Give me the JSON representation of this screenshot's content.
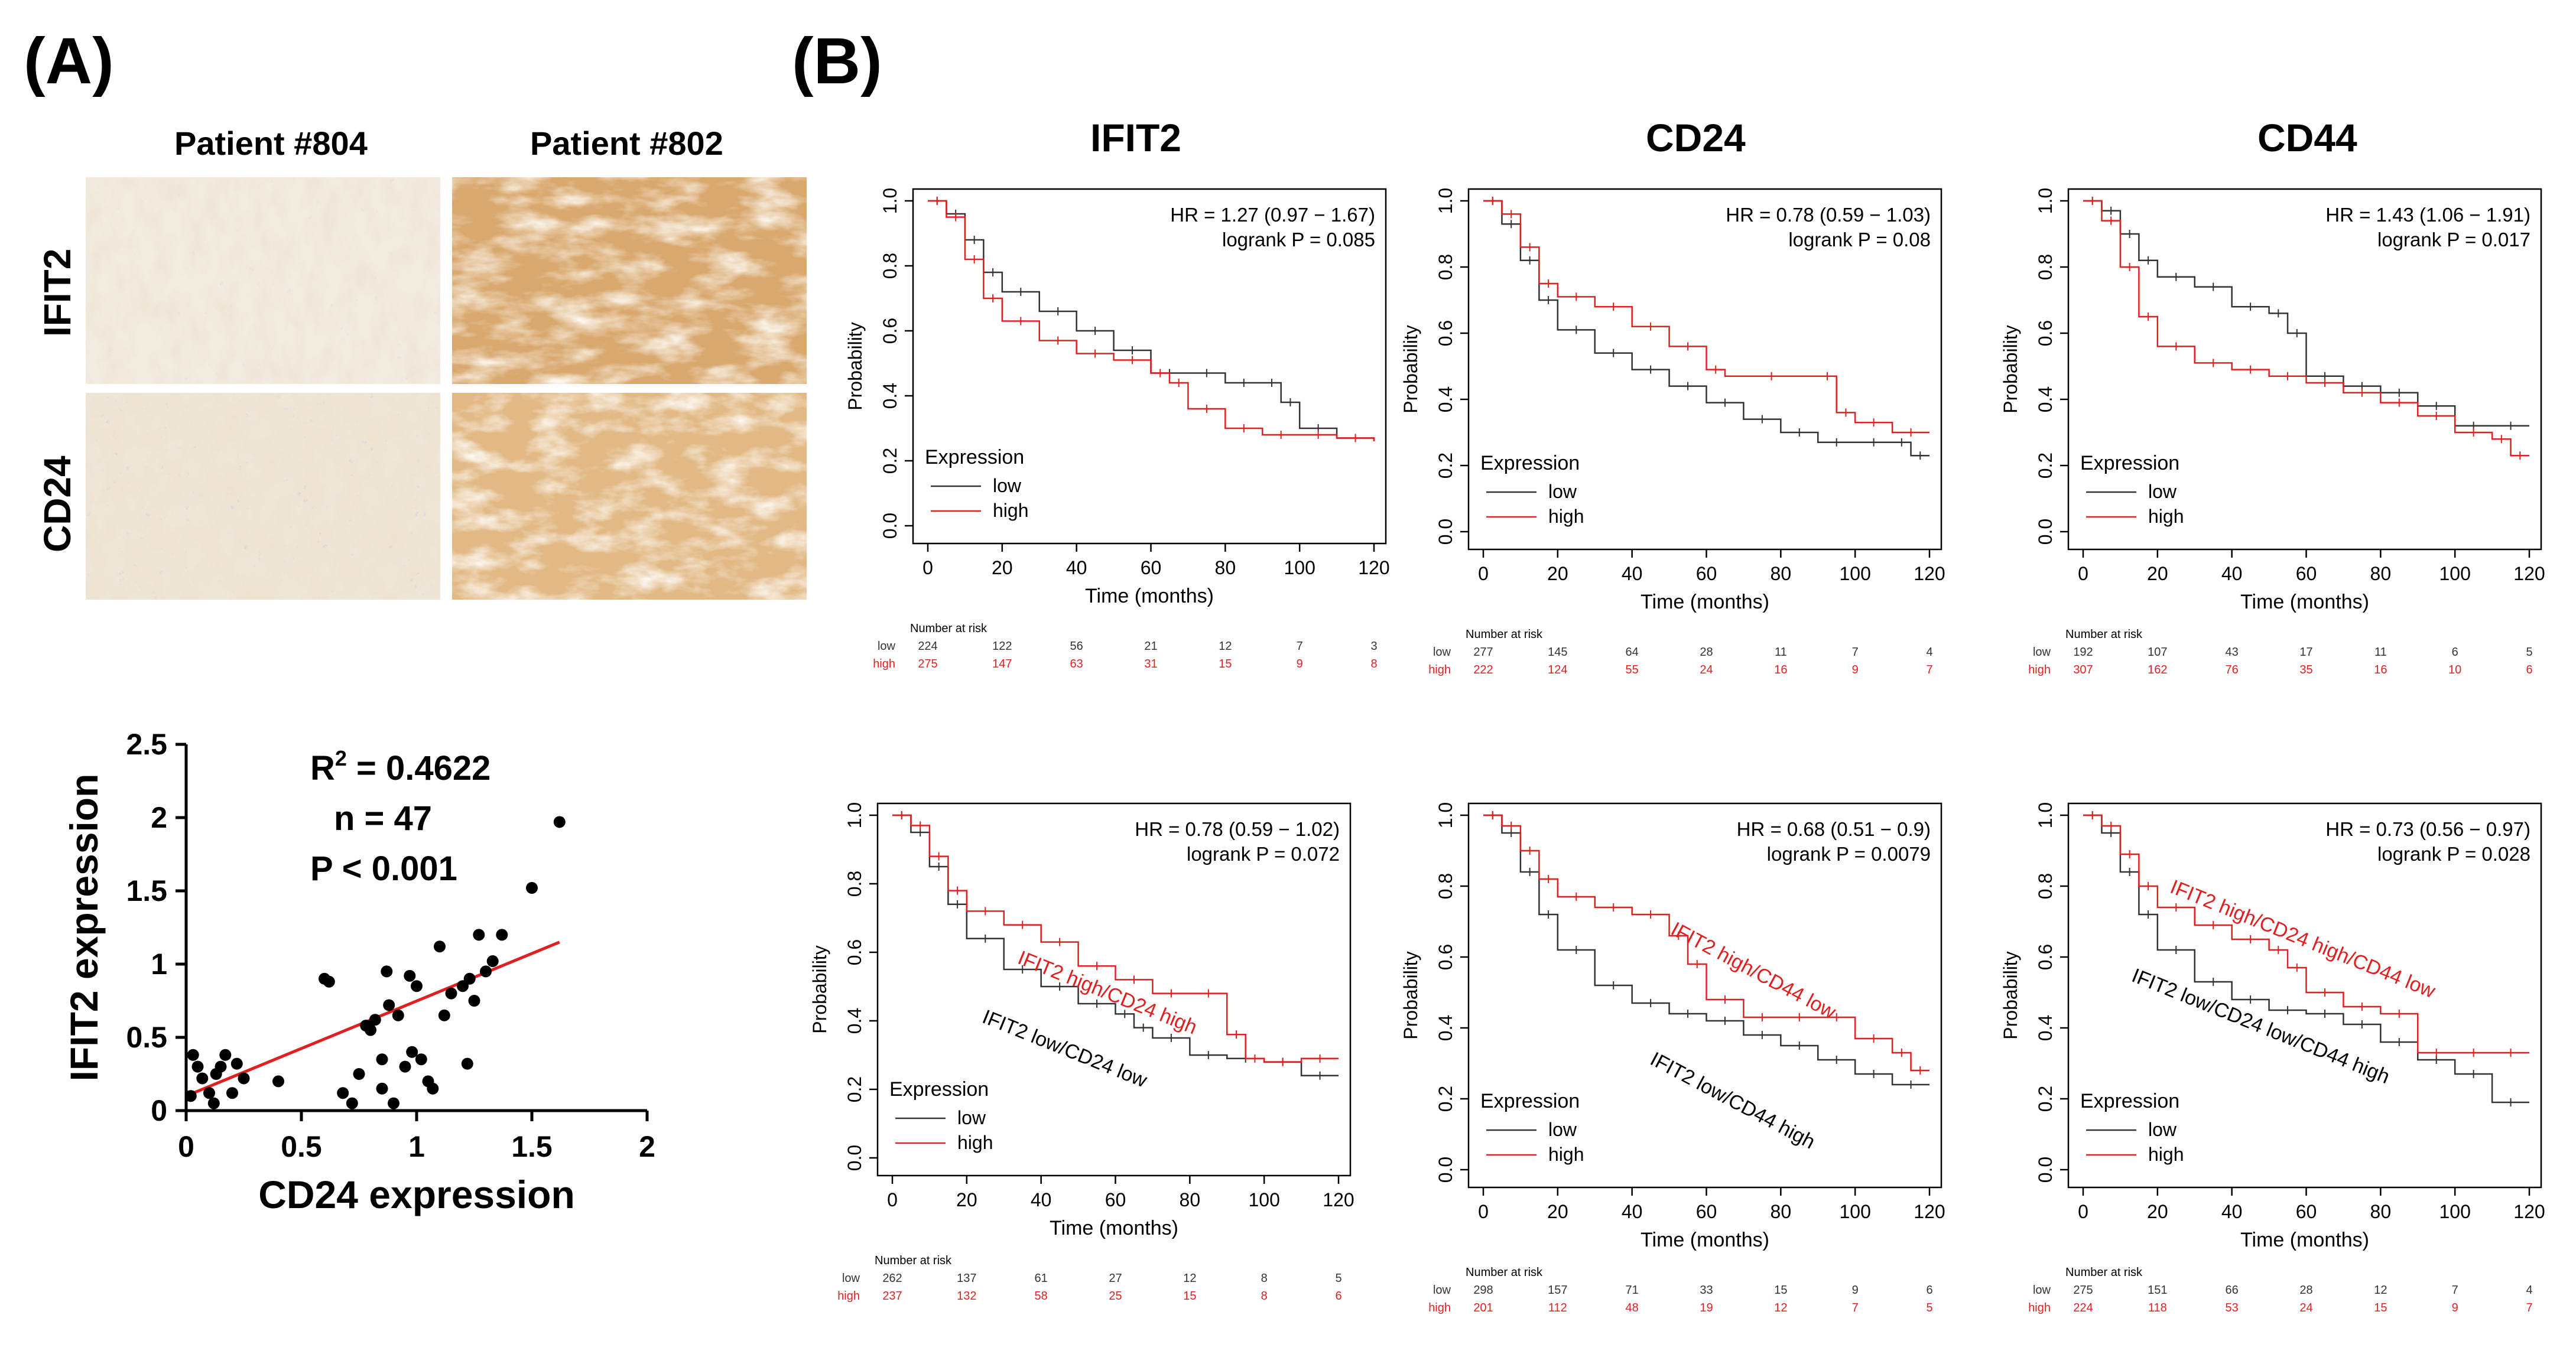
{
  "panels": {
    "a_label": "(A)",
    "b_label": "(B)"
  },
  "ihc": {
    "columns": [
      "Patient #804",
      "Patient #802"
    ],
    "rows": [
      "IFIT2",
      "CD24"
    ]
  },
  "gene_headers": [
    "IFIT2",
    "CD24",
    "CD44"
  ],
  "chart_data": [
    {
      "id": "scatter",
      "type": "scatter",
      "xlabel": "CD24 expression",
      "ylabel": "IFIT2 expression",
      "xlim": [
        0,
        2
      ],
      "ylim": [
        0,
        2.5
      ],
      "xticks": [
        "0",
        "0.5",
        "1",
        "1.5",
        "2"
      ],
      "yticks": [
        "0",
        "0.5",
        "1",
        "1.5",
        "2",
        "2.5"
      ],
      "annotations": {
        "r2_prefix": "R",
        "r2_sup": "2",
        "r2_value": " = 0.4622",
        "n": "n = 47",
        "p": "P < 0.001"
      },
      "fit": {
        "x": [
          0,
          1.62
        ],
        "y": [
          0.1,
          1.15
        ]
      },
      "points": [
        [
          0.02,
          0.1
        ],
        [
          0.03,
          0.38
        ],
        [
          0.05,
          0.3
        ],
        [
          0.07,
          0.22
        ],
        [
          0.1,
          0.12
        ],
        [
          0.12,
          0.05
        ],
        [
          0.13,
          0.25
        ],
        [
          0.15,
          0.3
        ],
        [
          0.17,
          0.38
        ],
        [
          0.2,
          0.12
        ],
        [
          0.22,
          0.32
        ],
        [
          0.25,
          0.22
        ],
        [
          0.4,
          0.2
        ],
        [
          0.6,
          0.9
        ],
        [
          0.62,
          0.88
        ],
        [
          0.68,
          0.12
        ],
        [
          0.72,
          0.05
        ],
        [
          0.75,
          0.25
        ],
        [
          0.78,
          0.58
        ],
        [
          0.8,
          0.55
        ],
        [
          0.82,
          0.62
        ],
        [
          0.85,
          0.15
        ],
        [
          0.85,
          0.35
        ],
        [
          0.87,
          0.95
        ],
        [
          0.88,
          0.72
        ],
        [
          0.9,
          0.05
        ],
        [
          0.92,
          0.65
        ],
        [
          0.95,
          0.3
        ],
        [
          0.97,
          0.92
        ],
        [
          0.98,
          0.4
        ],
        [
          1.0,
          0.85
        ],
        [
          1.02,
          0.35
        ],
        [
          1.05,
          0.2
        ],
        [
          1.07,
          0.15
        ],
        [
          1.1,
          1.12
        ],
        [
          1.12,
          0.65
        ],
        [
          1.15,
          0.8
        ],
        [
          1.2,
          0.85
        ],
        [
          1.22,
          0.32
        ],
        [
          1.23,
          0.9
        ],
        [
          1.25,
          0.75
        ],
        [
          1.27,
          1.2
        ],
        [
          1.3,
          0.95
        ],
        [
          1.33,
          1.02
        ],
        [
          1.37,
          1.2
        ],
        [
          1.5,
          1.52
        ],
        [
          1.62,
          1.97
        ]
      ]
    },
    {
      "id": "km-ifit2",
      "type": "line",
      "hr": "HR = 1.27 (0.97 − 1.67)",
      "logrank": "logrank P = 0.085",
      "xlabel": "Time (months)",
      "ylabel": "Probability",
      "xlim": [
        0,
        120
      ],
      "ylim": [
        0,
        1
      ],
      "xticks": [
        "0",
        "20",
        "40",
        "60",
        "80",
        "100",
        "120"
      ],
      "yticks": [
        "0.0",
        "0.2",
        "0.4",
        "0.6",
        "0.8",
        "1.0"
      ],
      "legend_title": "Expression",
      "series": [
        {
          "name": "low",
          "color": "#333333",
          "x": [
            0,
            5,
            10,
            15,
            20,
            30,
            40,
            50,
            60,
            70,
            80,
            90,
            95,
            100,
            110,
            120
          ],
          "y": [
            1,
            0.96,
            0.88,
            0.78,
            0.72,
            0.66,
            0.6,
            0.54,
            0.47,
            0.47,
            0.44,
            0.44,
            0.38,
            0.3,
            0.27,
            0.26
          ]
        },
        {
          "name": "high",
          "color": "#e02020",
          "x": [
            0,
            5,
            10,
            15,
            20,
            30,
            40,
            50,
            60,
            65,
            70,
            80,
            90,
            100,
            110,
            120
          ],
          "y": [
            1,
            0.95,
            0.82,
            0.7,
            0.63,
            0.57,
            0.53,
            0.51,
            0.47,
            0.44,
            0.36,
            0.3,
            0.28,
            0.28,
            0.27,
            0.26
          ]
        }
      ],
      "risk": {
        "title": "Number at risk",
        "rows": [
          {
            "label": "low",
            "color": "#333333",
            "values": [
              "224",
              "122",
              "56",
              "21",
              "12",
              "7",
              "3"
            ]
          },
          {
            "label": "high",
            "color": "#e02020",
            "values": [
              "275",
              "147",
              "63",
              "31",
              "15",
              "9",
              "8"
            ]
          }
        ]
      }
    },
    {
      "id": "km-cd24",
      "type": "line",
      "hr": "HR = 0.78 (0.59 − 1.03)",
      "logrank": "logrank P = 0.08",
      "xlabel": "Time (months)",
      "ylabel": "Probability",
      "xlim": [
        0,
        120
      ],
      "ylim": [
        0,
        1
      ],
      "xticks": [
        "0",
        "20",
        "40",
        "60",
        "80",
        "100",
        "120"
      ],
      "yticks": [
        "0.0",
        "0.2",
        "0.4",
        "0.6",
        "0.8",
        "1.0"
      ],
      "legend_title": "Expression",
      "series": [
        {
          "name": "low",
          "color": "#333333",
          "x": [
            0,
            5,
            10,
            15,
            20,
            30,
            40,
            50,
            60,
            70,
            80,
            90,
            100,
            110,
            115,
            120
          ],
          "y": [
            1,
            0.93,
            0.82,
            0.7,
            0.61,
            0.54,
            0.49,
            0.44,
            0.39,
            0.34,
            0.3,
            0.27,
            0.27,
            0.27,
            0.23,
            0.23
          ]
        },
        {
          "name": "high",
          "color": "#e02020",
          "x": [
            0,
            5,
            10,
            15,
            20,
            30,
            40,
            50,
            60,
            65,
            90,
            95,
            100,
            110,
            120
          ],
          "y": [
            1,
            0.96,
            0.86,
            0.75,
            0.71,
            0.68,
            0.62,
            0.56,
            0.49,
            0.47,
            0.47,
            0.36,
            0.33,
            0.3,
            0.3
          ]
        }
      ],
      "risk": {
        "title": "Number at risk",
        "rows": [
          {
            "label": "low",
            "color": "#333333",
            "values": [
              "277",
              "145",
              "64",
              "28",
              "11",
              "7",
              "4"
            ]
          },
          {
            "label": "high",
            "color": "#e02020",
            "values": [
              "222",
              "124",
              "55",
              "24",
              "16",
              "9",
              "7"
            ]
          }
        ]
      }
    },
    {
      "id": "km-cd44",
      "type": "line",
      "hr": "HR = 1.43 (1.06 − 1.91)",
      "logrank": "logrank P = 0.017",
      "xlabel": "Time (months)",
      "ylabel": "Probability",
      "xlim": [
        0,
        120
      ],
      "ylim": [
        0,
        1
      ],
      "xticks": [
        "0",
        "20",
        "40",
        "60",
        "80",
        "100",
        "120"
      ],
      "yticks": [
        "0.0",
        "0.2",
        "0.4",
        "0.6",
        "0.8",
        "1.0"
      ],
      "legend_title": "Expression",
      "series": [
        {
          "name": "low",
          "color": "#333333",
          "x": [
            0,
            5,
            10,
            15,
            20,
            30,
            40,
            50,
            55,
            60,
            70,
            80,
            90,
            100,
            110,
            120
          ],
          "y": [
            1,
            0.97,
            0.9,
            0.82,
            0.77,
            0.74,
            0.68,
            0.66,
            0.6,
            0.47,
            0.44,
            0.42,
            0.38,
            0.32,
            0.32,
            0.32
          ]
        },
        {
          "name": "high",
          "color": "#e02020",
          "x": [
            0,
            5,
            10,
            15,
            20,
            30,
            40,
            50,
            60,
            70,
            80,
            90,
            100,
            110,
            115,
            120
          ],
          "y": [
            1,
            0.94,
            0.8,
            0.65,
            0.56,
            0.51,
            0.49,
            0.47,
            0.45,
            0.42,
            0.39,
            0.35,
            0.3,
            0.28,
            0.23,
            0.23
          ]
        }
      ],
      "risk": {
        "title": "Number at risk",
        "rows": [
          {
            "label": "low",
            "color": "#333333",
            "values": [
              "192",
              "107",
              "43",
              "17",
              "11",
              "6",
              "5"
            ]
          },
          {
            "label": "high",
            "color": "#e02020",
            "values": [
              "307",
              "162",
              "76",
              "35",
              "16",
              "10",
              "6"
            ]
          }
        ]
      }
    },
    {
      "id": "km-ifit2-cd24",
      "type": "line",
      "hr": "HR = 0.78 (0.59 − 1.02)",
      "logrank": "logrank P = 0.072",
      "xlabel": "Time (months)",
      "ylabel": "Probability",
      "xlim": [
        0,
        120
      ],
      "ylim": [
        0,
        1
      ],
      "xticks": [
        "0",
        "20",
        "40",
        "60",
        "80",
        "100",
        "120"
      ],
      "yticks": [
        "0.0",
        "0.2",
        "0.4",
        "0.6",
        "0.8",
        "1.0"
      ],
      "legend_title": "Expression",
      "curve_labels": [
        "IFIT2 high/CD24 high",
        "IFIT2 low/CD24 low"
      ],
      "series": [
        {
          "name": "low",
          "color": "#333333",
          "x": [
            0,
            5,
            10,
            15,
            20,
            30,
            40,
            50,
            60,
            65,
            70,
            80,
            90,
            100,
            110,
            120
          ],
          "y": [
            1,
            0.95,
            0.85,
            0.74,
            0.64,
            0.55,
            0.5,
            0.45,
            0.42,
            0.38,
            0.35,
            0.3,
            0.29,
            0.28,
            0.24,
            0.24
          ]
        },
        {
          "name": "high",
          "color": "#e02020",
          "x": [
            0,
            5,
            10,
            15,
            20,
            30,
            40,
            50,
            60,
            70,
            80,
            90,
            95,
            100,
            110,
            120
          ],
          "y": [
            1,
            0.97,
            0.88,
            0.78,
            0.72,
            0.68,
            0.63,
            0.56,
            0.52,
            0.48,
            0.48,
            0.36,
            0.29,
            0.28,
            0.29,
            0.29
          ]
        }
      ],
      "risk": {
        "title": "Number at risk",
        "rows": [
          {
            "label": "low",
            "color": "#333333",
            "values": [
              "262",
              "137",
              "61",
              "27",
              "12",
              "8",
              "5"
            ]
          },
          {
            "label": "high",
            "color": "#e02020",
            "values": [
              "237",
              "132",
              "58",
              "25",
              "15",
              "8",
              "6"
            ]
          }
        ]
      }
    },
    {
      "id": "km-ifit2-cd44",
      "type": "line",
      "hr": "HR = 0.68 (0.51 − 0.9)",
      "logrank": "logrank P = 0.0079",
      "xlabel": "Time (months)",
      "ylabel": "Probability",
      "xlim": [
        0,
        120
      ],
      "ylim": [
        0,
        1
      ],
      "xticks": [
        "0",
        "20",
        "40",
        "60",
        "80",
        "100",
        "120"
      ],
      "yticks": [
        "0.0",
        "0.2",
        "0.4",
        "0.6",
        "0.8",
        "1.0"
      ],
      "legend_title": "Expression",
      "curve_labels": [
        "IFIT2 high/CD44  low",
        "IFIT2 low/CD44  high"
      ],
      "series": [
        {
          "name": "low",
          "color": "#333333",
          "x": [
            0,
            5,
            10,
            15,
            20,
            30,
            40,
            50,
            60,
            70,
            80,
            90,
            100,
            110,
            120
          ],
          "y": [
            1,
            0.95,
            0.84,
            0.72,
            0.62,
            0.52,
            0.47,
            0.44,
            0.42,
            0.38,
            0.35,
            0.31,
            0.27,
            0.24,
            0.24
          ]
        },
        {
          "name": "high",
          "color": "#e02020",
          "x": [
            0,
            5,
            10,
            15,
            20,
            30,
            40,
            50,
            55,
            60,
            70,
            80,
            90,
            100,
            110,
            115,
            120
          ],
          "y": [
            1,
            0.97,
            0.9,
            0.82,
            0.77,
            0.74,
            0.72,
            0.66,
            0.58,
            0.48,
            0.43,
            0.43,
            0.43,
            0.37,
            0.33,
            0.28,
            0.28
          ]
        }
      ],
      "risk": {
        "title": "Number at risk",
        "rows": [
          {
            "label": "low",
            "color": "#333333",
            "values": [
              "298",
              "157",
              "71",
              "33",
              "15",
              "9",
              "6"
            ]
          },
          {
            "label": "high",
            "color": "#e02020",
            "values": [
              "201",
              "112",
              "48",
              "19",
              "12",
              "7",
              "5"
            ]
          }
        ]
      }
    },
    {
      "id": "km-ifit2-cd24-cd44",
      "type": "line",
      "hr": "HR = 0.73 (0.56 − 0.97)",
      "logrank": "logrank P = 0.028",
      "xlabel": "Time (months)",
      "ylabel": "Probability",
      "xlim": [
        0,
        120
      ],
      "ylim": [
        0,
        1
      ],
      "xticks": [
        "0",
        "20",
        "40",
        "60",
        "80",
        "100",
        "120"
      ],
      "yticks": [
        "0.0",
        "0.2",
        "0.4",
        "0.6",
        "0.8",
        "1.0"
      ],
      "legend_title": "Expression",
      "curve_labels": [
        "IFIT2 high/CD24 high/CD44 low",
        "IFIT2 low/CD24 low/CD44 high"
      ],
      "series": [
        {
          "name": "low",
          "color": "#333333",
          "x": [
            0,
            5,
            10,
            15,
            20,
            30,
            40,
            50,
            60,
            70,
            80,
            90,
            100,
            110,
            120
          ],
          "y": [
            1,
            0.95,
            0.84,
            0.72,
            0.62,
            0.53,
            0.48,
            0.45,
            0.44,
            0.41,
            0.36,
            0.31,
            0.27,
            0.19,
            0.19
          ]
        },
        {
          "name": "high",
          "color": "#e02020",
          "x": [
            0,
            5,
            10,
            15,
            20,
            30,
            40,
            50,
            55,
            60,
            70,
            80,
            90,
            100,
            110,
            120
          ],
          "y": [
            1,
            0.97,
            0.89,
            0.8,
            0.74,
            0.69,
            0.65,
            0.62,
            0.57,
            0.5,
            0.46,
            0.44,
            0.33,
            0.33,
            0.33,
            0.33
          ]
        }
      ],
      "risk": {
        "title": "Number at risk",
        "rows": [
          {
            "label": "low",
            "color": "#333333",
            "values": [
              "275",
              "151",
              "66",
              "28",
              "12",
              "7",
              "4"
            ]
          },
          {
            "label": "high",
            "color": "#e02020",
            "values": [
              "224",
              "118",
              "53",
              "24",
              "15",
              "9",
              "7"
            ]
          }
        ]
      }
    }
  ]
}
